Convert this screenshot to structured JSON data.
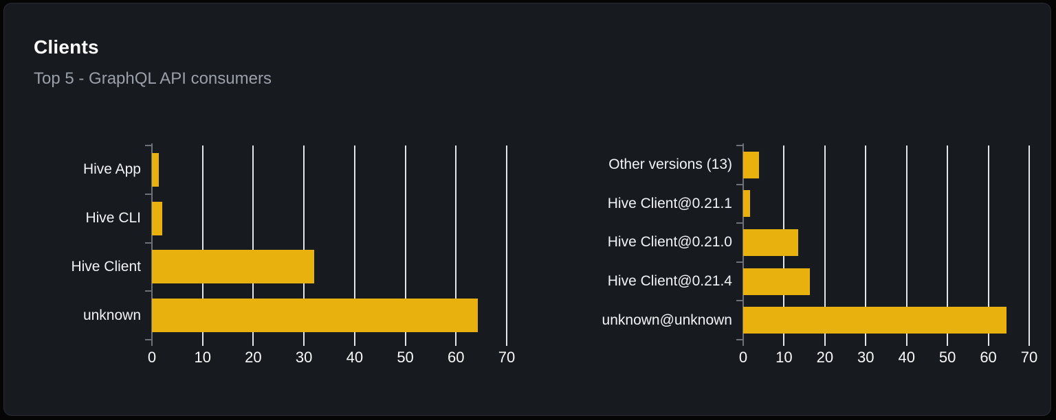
{
  "card": {
    "title": "Clients",
    "subtitle": "Top 5 - GraphQL API consumers"
  },
  "colors": {
    "page_bg": "#050505",
    "card_bg": "#171a1f",
    "card_border": "#282b32",
    "bar": "#e9b10d",
    "gridline": "#e2e6ee",
    "axis": "#6e717a",
    "title_text": "#ffffff",
    "subtitle_text": "#9aa0aa",
    "label_text": "#f2f3f5"
  },
  "chart_data": [
    {
      "type": "bar",
      "orientation": "horizontal",
      "title": "",
      "categories": [
        "Hive App",
        "Hive CLI",
        "Hive Client",
        "unknown"
      ],
      "values": [
        1.4,
        2,
        32,
        64.3
      ],
      "xlabel": "",
      "ylabel": "",
      "xlim": [
        0,
        70
      ],
      "xticks": [
        0,
        10,
        20,
        30,
        40,
        50,
        60,
        70
      ],
      "grid": true,
      "legend": false,
      "bar_color": "#e9b10d"
    },
    {
      "type": "bar",
      "orientation": "horizontal",
      "title": "",
      "categories": [
        "Other versions (13)",
        "Hive Client@0.21.1",
        "Hive Client@0.21.0",
        "Hive Client@0.21.4",
        "unknown@unknown"
      ],
      "values": [
        3.8,
        1.6,
        13.5,
        16.4,
        64.4
      ],
      "xlabel": "",
      "ylabel": "",
      "xlim": [
        0,
        70
      ],
      "xticks": [
        0,
        10,
        20,
        30,
        40,
        50,
        60,
        70
      ],
      "grid": true,
      "legend": false,
      "bar_color": "#e9b10d"
    }
  ]
}
